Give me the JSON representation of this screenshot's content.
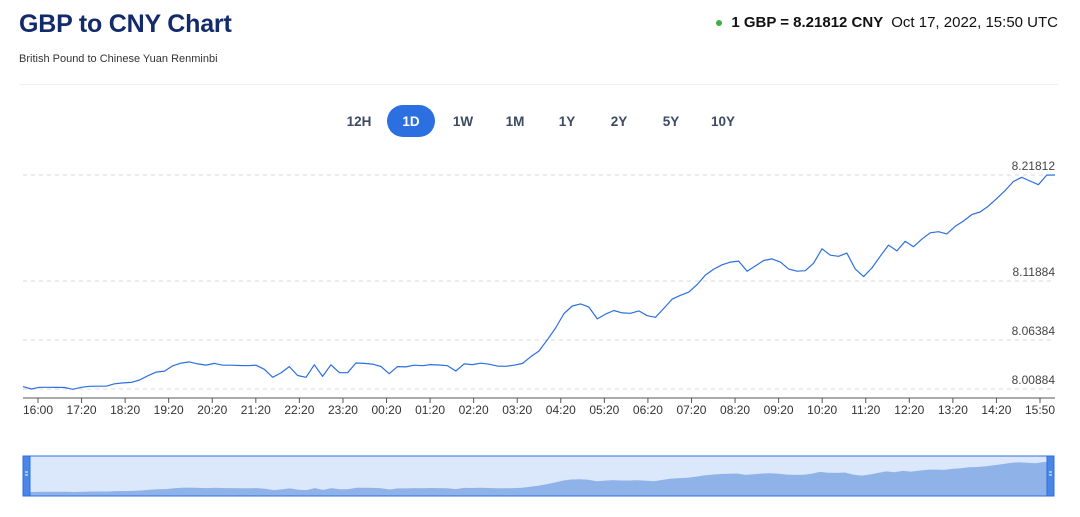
{
  "header": {
    "title": "GBP to CNY Chart",
    "subtitle": "British Pound to Chinese Yuan Renminbi",
    "rate": "1 GBP = 8.21812 CNY",
    "timestamp": "Oct 17, 2022, 15:50 UTC",
    "live_dot_color": "#3cb043"
  },
  "ranges": [
    {
      "label": "12H",
      "active": false
    },
    {
      "label": "1D",
      "active": true
    },
    {
      "label": "1W",
      "active": false
    },
    {
      "label": "1M",
      "active": false
    },
    {
      "label": "1Y",
      "active": false
    },
    {
      "label": "2Y",
      "active": false
    },
    {
      "label": "5Y",
      "active": false
    },
    {
      "label": "10Y",
      "active": false
    }
  ],
  "chart_data": {
    "type": "line",
    "title": "",
    "xlabel": "",
    "ylabel": "",
    "ylim": [
      8.00884,
      8.21812
    ],
    "y_ticks": [
      "8.21812",
      "8.11884",
      "8.06384",
      "8.00884"
    ],
    "x_ticks": [
      "16:00",
      "17:20",
      "18:20",
      "19:20",
      "20:20",
      "21:20",
      "22:20",
      "23:20",
      "00:20",
      "01:20",
      "02:20",
      "03:20",
      "04:20",
      "05:20",
      "06:20",
      "07:20",
      "08:20",
      "09:20",
      "10:20",
      "11:20",
      "12:20",
      "13:20",
      "14:20",
      "15:50"
    ],
    "grid": "horizontal-dashed",
    "line_color": "#2c6fe0",
    "series": [
      {
        "values": [
          8.0115,
          8.0088,
          8.0107,
          8.0107,
          8.0106,
          8.0105,
          8.0085,
          8.0108,
          8.0119,
          8.012,
          8.012,
          8.0147,
          8.0157,
          8.0163,
          8.0189,
          8.0237,
          8.0278,
          8.0289,
          8.0349,
          8.0379,
          8.0393,
          8.037,
          8.0357,
          8.0376,
          8.0355,
          8.0355,
          8.0352,
          8.035,
          8.0355,
          8.031,
          8.022,
          8.0269,
          8.034,
          8.024,
          8.022,
          8.036,
          8.023,
          8.036,
          8.0272,
          8.0271,
          8.038,
          8.0376,
          8.0368,
          8.0341,
          8.026,
          8.034,
          8.0336,
          8.0355,
          8.035,
          8.0362,
          8.0358,
          8.035,
          8.029,
          8.037,
          8.0362,
          8.0378,
          8.0367,
          8.0346,
          8.0343,
          8.0355,
          8.0375,
          8.045,
          8.0515,
          8.064,
          8.075,
          8.0885,
          8.0955,
          8.0975,
          8.0945,
          8.0835,
          8.088,
          8.0913,
          8.0891,
          8.0887,
          8.091,
          8.0865,
          8.085,
          8.0933,
          8.102,
          8.1055,
          8.1085,
          8.1155,
          8.1245,
          8.13,
          8.134,
          8.1365,
          8.1375,
          8.128,
          8.133,
          8.138,
          8.1395,
          8.1365,
          8.13,
          8.128,
          8.1285,
          8.1355,
          8.149,
          8.143,
          8.142,
          8.145,
          8.13,
          8.123,
          8.131,
          8.142,
          8.1525,
          8.147,
          8.156,
          8.151,
          8.158,
          8.164,
          8.165,
          8.163,
          8.17,
          8.175,
          8.181,
          8.1835,
          8.189,
          8.196,
          8.2035,
          8.212,
          8.216,
          8.2125,
          8.209,
          8.218,
          8.2181
        ]
      }
    ]
  },
  "navigator": {
    "fill_color": "#8fb3e8",
    "mask_color": "#dbe7fa",
    "border_color": "#2c6fe0"
  }
}
